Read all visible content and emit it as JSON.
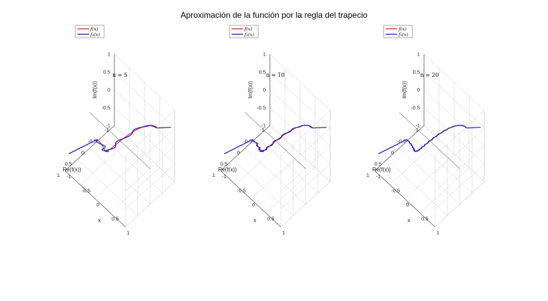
{
  "suptitle": "Aproximación de la función por la regla del trapecio",
  "colors": {
    "exact": "#e01b1b",
    "approx": "#1010c8",
    "axis": "#4a4a4a",
    "grid": "#bdbdbd",
    "text": "#222222"
  },
  "legend_labels": {
    "exact": "f(x)",
    "approx": "fₙ(x)"
  },
  "axis_labels": {
    "z": "Im(f(x))",
    "y": "Re(f(x))",
    "x": "x"
  },
  "chart_data": [
    {
      "type": "line3d",
      "title": "n = 5",
      "n": 5,
      "xlim": [
        -1,
        1
      ],
      "ylim": [
        -1,
        1
      ],
      "zlim": [
        -1,
        1
      ],
      "xticks": [
        "-1",
        "-0.5",
        "0",
        "0.5",
        "1"
      ],
      "yticks": [
        "-1",
        "-0.5",
        "0",
        "0.5",
        "1"
      ],
      "zticks": [
        "-1",
        "-0.5",
        "0",
        "0.5",
        "1"
      ],
      "series": [
        {
          "name": "f(x)",
          "role": "exact",
          "description": "exact curve x → (cos(πx), sin(πx))"
        },
        {
          "name": "fₙ(x)",
          "role": "approx",
          "description": "trapezoid-rule approximation with n = 5 terms"
        }
      ]
    },
    {
      "type": "line3d",
      "title": "n = 10",
      "n": 10,
      "xlim": [
        -1,
        1
      ],
      "ylim": [
        -1,
        1
      ],
      "zlim": [
        -1,
        1
      ],
      "xticks": [
        "-1",
        "-0.5",
        "0",
        "0.5",
        "1"
      ],
      "yticks": [
        "-1",
        "-0.5",
        "0",
        "0.5",
        "1"
      ],
      "zticks": [
        "-1",
        "-0.5",
        "0",
        "0.5",
        "1"
      ],
      "series": [
        {
          "name": "f(x)",
          "role": "exact",
          "description": "exact curve x → (cos(πx), sin(πx))"
        },
        {
          "name": "fₙ(x)",
          "role": "approx",
          "description": "trapezoid-rule approximation with n = 10 terms"
        }
      ]
    },
    {
      "type": "line3d",
      "title": "n = 20",
      "n": 20,
      "xlim": [
        -1,
        1
      ],
      "ylim": [
        -1,
        1
      ],
      "zlim": [
        -1,
        1
      ],
      "xticks": [
        "-1",
        "-0.5",
        "0",
        "0.5",
        "1"
      ],
      "yticks": [
        "-1",
        "-0.5",
        "0",
        "0.5",
        "1"
      ],
      "zticks": [
        "-1",
        "-0.5",
        "0",
        "0.5",
        "1"
      ],
      "series": [
        {
          "name": "f(x)",
          "role": "exact",
          "description": "exact curve x → (cos(πx), sin(πx))"
        },
        {
          "name": "fₙ(x)",
          "role": "approx",
          "description": "trapezoid-rule approximation with n = 20 terms"
        }
      ]
    }
  ]
}
